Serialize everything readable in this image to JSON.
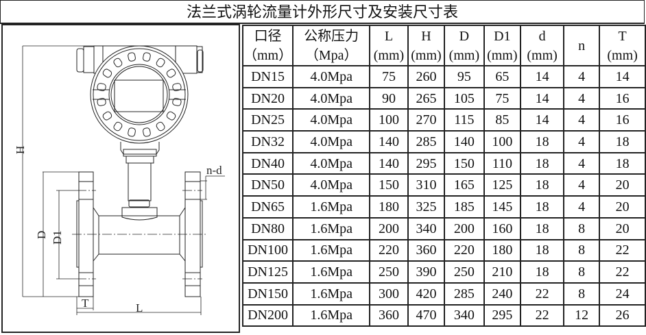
{
  "title": "法兰式涡轮流量计外形尺寸及安装尺寸表",
  "drawing": {
    "labels": {
      "H": "H",
      "D": "D",
      "D1": "D1",
      "T": "T",
      "L": "L",
      "nd": "n-d"
    }
  },
  "table": {
    "headers": [
      {
        "name": "口径",
        "unit": "（mm）"
      },
      {
        "name": "公称压力",
        "unit": "（Mpa）"
      },
      {
        "name": "L",
        "unit": "(mm)"
      },
      {
        "name": "H",
        "unit": "(mm)"
      },
      {
        "name": "D",
        "unit": "(mm)"
      },
      {
        "name": "D1",
        "unit": "(mm)"
      },
      {
        "name": "d",
        "unit": "(mm)"
      },
      {
        "name": "n",
        "unit": ""
      },
      {
        "name": "T",
        "unit": "(mm)"
      }
    ],
    "rows": [
      [
        "DN15",
        "4.0Mpa",
        "75",
        "260",
        "95",
        "65",
        "14",
        "4",
        "14"
      ],
      [
        "DN20",
        "4.0Mpa",
        "90",
        "265",
        "105",
        "75",
        "14",
        "4",
        "16"
      ],
      [
        "DN25",
        "4.0Mpa",
        "100",
        "270",
        "115",
        "85",
        "14",
        "4",
        "16"
      ],
      [
        "DN32",
        "4.0Mpa",
        "140",
        "285",
        "140",
        "100",
        "18",
        "4",
        "18"
      ],
      [
        "DN40",
        "4.0Mpa",
        "140",
        "295",
        "150",
        "110",
        "18",
        "4",
        "18"
      ],
      [
        "DN50",
        "4.0Mpa",
        "150",
        "310",
        "165",
        "125",
        "18",
        "4",
        "20"
      ],
      [
        "DN65",
        "1.6Mpa",
        "180",
        "325",
        "185",
        "145",
        "18",
        "4",
        "20"
      ],
      [
        "DN80",
        "1.6Mpa",
        "200",
        "340",
        "200",
        "160",
        "18",
        "8",
        "20"
      ],
      [
        "DN100",
        "1.6Mpa",
        "220",
        "360",
        "220",
        "180",
        "18",
        "8",
        "22"
      ],
      [
        "DN125",
        "1.6Mpa",
        "250",
        "390",
        "250",
        "210",
        "18",
        "8",
        "22"
      ],
      [
        "DN150",
        "1.6Mpa",
        "300",
        "420",
        "285",
        "240",
        "22",
        "8",
        "24"
      ],
      [
        "DN200",
        "1.6Mpa",
        "360",
        "470",
        "340",
        "295",
        "22",
        "12",
        "26"
      ]
    ]
  }
}
